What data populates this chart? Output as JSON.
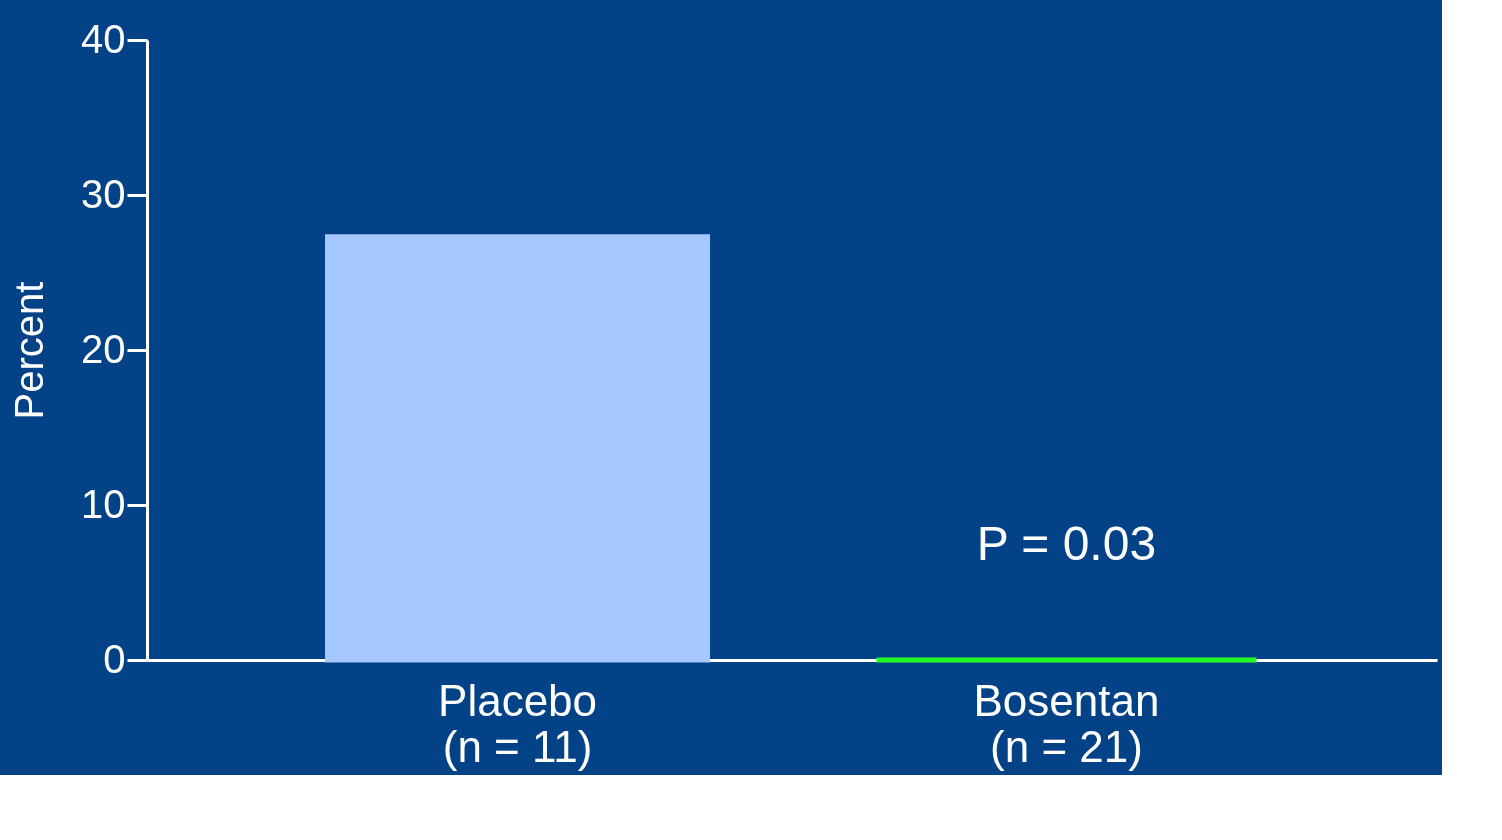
{
  "chart_data": {
    "type": "bar",
    "ylabel": "Percent",
    "categories": [
      "Placebo\n(n = 11)",
      "Bosentan\n(n = 21)"
    ],
    "values": [
      27.3,
      0
    ],
    "colors": [
      "#a4c8ff",
      "#22ff22"
    ],
    "ylim": [
      0,
      40
    ],
    "yticks": [
      0,
      10,
      20,
      30,
      40
    ],
    "grid": false,
    "annotations": [
      "P = 0.03"
    ]
  }
}
